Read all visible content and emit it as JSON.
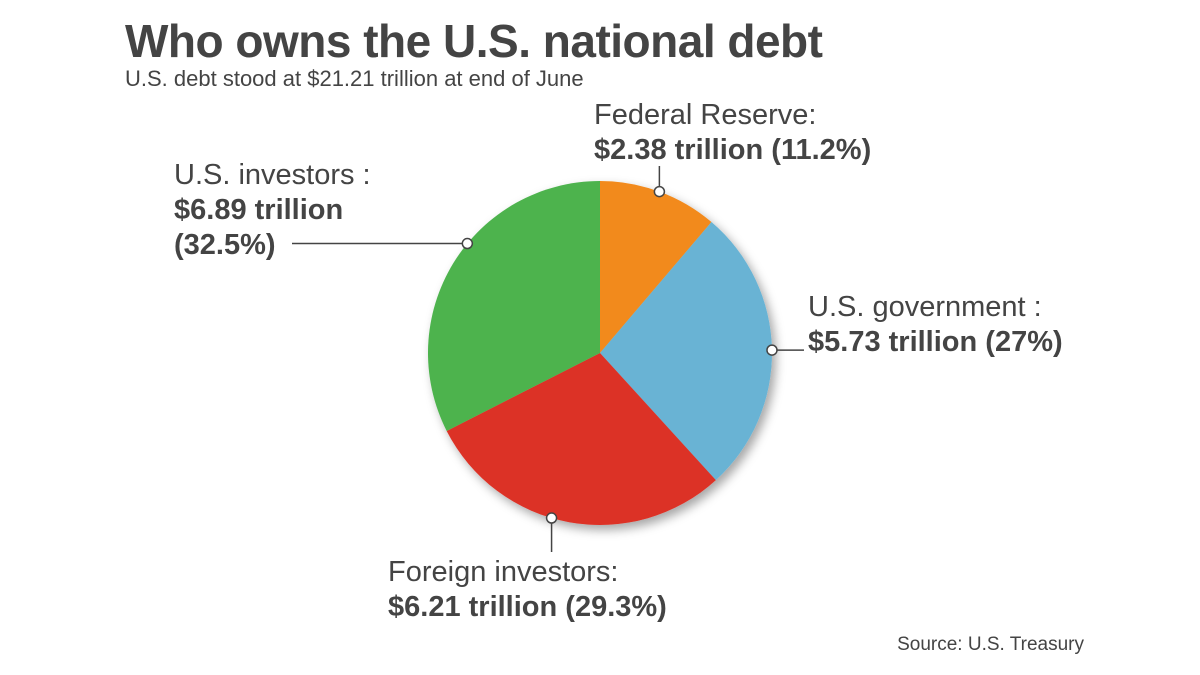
{
  "chart_data": {
    "type": "pie",
    "title": "Who owns the U.S. national debt",
    "subtitle": "U.S. debt stood at $21.21 trillion at end of June",
    "source": "Source: U.S. Treasury",
    "slices": [
      {
        "label": "Federal Reserve:",
        "value_label": "$2.38 trillion (11.2%)",
        "value": 2.38,
        "percent": 11.2,
        "color": "#F28A1E"
      },
      {
        "label": "U.S. government :",
        "value_label": "$5.73 trillion (27%)",
        "value": 5.73,
        "percent": 27,
        "color": "#69B3D4"
      },
      {
        "label": "Foreign investors:",
        "value_label": "$6.21 trillion (29.3%)",
        "value": 6.21,
        "percent": 29.3,
        "color": "#DC3227"
      },
      {
        "label": "U.S. investors :",
        "value_label_line1": "$6.89 trillion",
        "value_label_line2": "(32.5%)",
        "value": 6.89,
        "percent": 32.5,
        "color": "#4DB34D"
      }
    ]
  }
}
